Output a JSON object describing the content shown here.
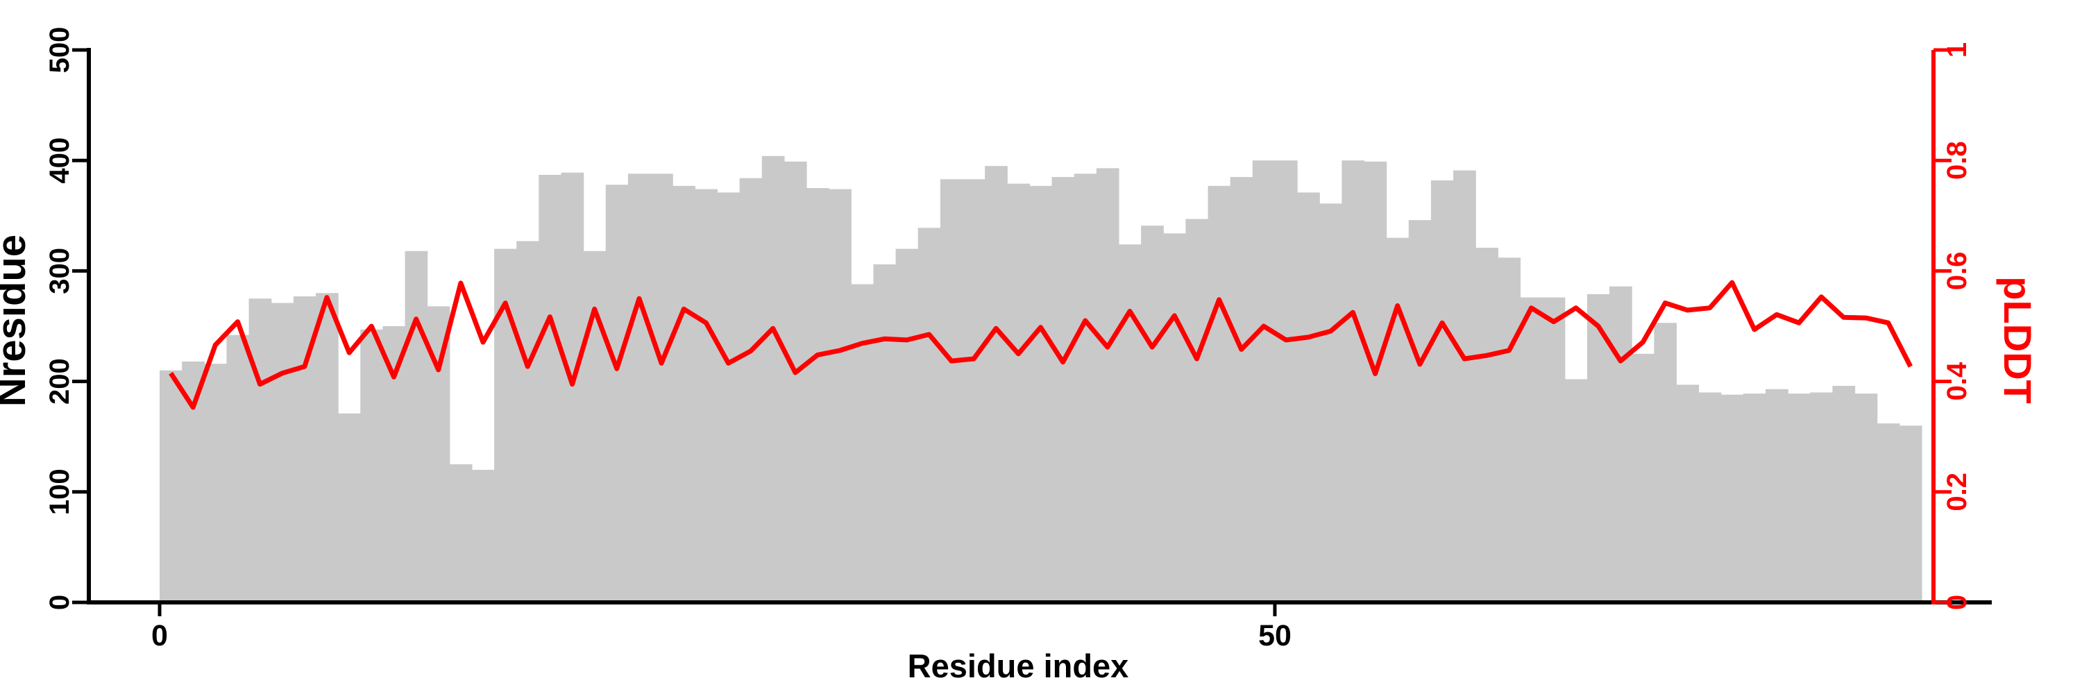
{
  "chart_data": {
    "type": "bar",
    "title": "",
    "xlabel": "Residue index",
    "ylabel_left": "Nresidue",
    "ylabel_right": "pLDDT",
    "x_note": "79 bars; bar i spans residue index [i, i+1] for i = 0..78; line vertex at each bar center",
    "xlim": [
      -3.2,
      82.2
    ],
    "ylim_left": [
      0,
      500
    ],
    "ylim_right": [
      0,
      1
    ],
    "grid": false,
    "legend_position": "none",
    "x_ticks": [
      {
        "value": 0,
        "label": "0"
      },
      {
        "value": 50,
        "label": "50"
      }
    ],
    "y_ticks_left": [
      {
        "value": 0,
        "label": "0"
      },
      {
        "value": 100,
        "label": "100"
      },
      {
        "value": 200,
        "label": "200"
      },
      {
        "value": 300,
        "label": "300"
      },
      {
        "value": 400,
        "label": "400"
      },
      {
        "value": 500,
        "label": "500"
      }
    ],
    "y_ticks_right": [
      {
        "value": 0,
        "label": "0"
      },
      {
        "value": 0.2,
        "label": "0.2"
      },
      {
        "value": 0.4,
        "label": "0.4"
      },
      {
        "value": 0.6,
        "label": "0.6"
      },
      {
        "value": 0.8,
        "label": "0.8"
      },
      {
        "value": 1,
        "label": "1"
      }
    ],
    "series": [
      {
        "name": "Nresidue",
        "type": "bar",
        "axis": "left",
        "color": "#c9c9c9",
        "values": [
          210,
          218,
          216,
          242,
          275,
          271,
          277,
          280,
          171,
          247,
          250,
          318,
          268,
          125,
          120,
          320,
          327,
          387,
          389,
          318,
          378,
          388,
          388,
          377,
          374,
          371,
          384,
          404,
          399,
          375,
          374,
          288,
          306,
          320,
          339,
          383,
          383,
          395,
          379,
          377,
          385,
          388,
          393,
          324,
          341,
          334,
          347,
          377,
          385,
          400,
          400,
          371,
          361,
          400,
          399,
          330,
          346,
          382,
          391,
          321,
          312,
          276,
          276,
          202,
          279,
          286,
          225,
          253,
          197,
          190,
          188,
          189,
          193,
          189,
          190,
          196,
          189,
          162,
          160
        ]
      },
      {
        "name": "pLDDT",
        "type": "line",
        "axis": "right",
        "color": "#ff0000",
        "values": [
          0.415,
          0.353,
          0.466,
          0.508,
          0.395,
          0.415,
          0.427,
          0.552,
          0.452,
          0.5,
          0.408,
          0.513,
          0.421,
          0.578,
          0.471,
          0.542,
          0.427,
          0.517,
          0.395,
          0.531,
          0.423,
          0.55,
          0.433,
          0.531,
          0.506,
          0.433,
          0.455,
          0.496,
          0.416,
          0.448,
          0.456,
          0.469,
          0.477,
          0.475,
          0.485,
          0.437,
          0.441,
          0.496,
          0.45,
          0.498,
          0.435,
          0.51,
          0.462,
          0.527,
          0.462,
          0.519,
          0.441,
          0.548,
          0.458,
          0.5,
          0.475,
          0.48,
          0.491,
          0.525,
          0.414,
          0.537,
          0.431,
          0.506,
          0.441,
          0.447,
          0.456,
          0.533,
          0.508,
          0.533,
          0.5,
          0.437,
          0.471,
          0.542,
          0.529,
          0.533,
          0.579,
          0.494,
          0.521,
          0.506,
          0.553,
          0.516,
          0.515,
          0.506,
          0.427
        ]
      }
    ]
  },
  "colors": {
    "bar": "#c9c9c9",
    "line": "#ff0000",
    "axis_left": "#000000",
    "axis_right": "#ff0000",
    "background": "#ffffff"
  }
}
